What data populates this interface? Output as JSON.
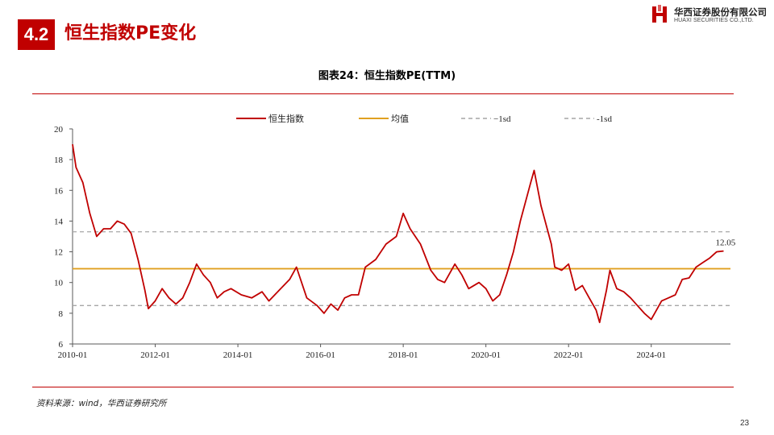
{
  "header": {
    "section_number": "4.2",
    "section_title": "恒生指数PE变化",
    "logo_cn": "华西证券股份有限公司",
    "logo_en": "HUAXI SECURITIES CO.,LTD.",
    "brand_color": "#c00000"
  },
  "chart_title": "图表24：恒生指数PE(TTM)",
  "source": "资料来源：wind，华西证券研究所",
  "page_number": "23",
  "chart_data": {
    "type": "line",
    "title": "图表24：恒生指数PE(TTM)",
    "xlabel": "",
    "ylabel": "",
    "ylim": [
      6,
      20
    ],
    "y_ticks": [
      "6",
      "8",
      "10",
      "12",
      "14",
      "16",
      "18",
      "20"
    ],
    "x_range": [
      "2010-01",
      "2025-12"
    ],
    "x_ticks": [
      "2010-01",
      "2012-01",
      "2014-01",
      "2016-01",
      "2018-01",
      "2020-01",
      "2022-01",
      "2024-01"
    ],
    "grid": false,
    "legend_position": "top",
    "legend": [
      "恒生指数",
      "均值",
      "−1sd",
      "-1sd"
    ],
    "series": [
      {
        "name": "恒生指数",
        "color": "#c00000",
        "style": "solid",
        "points": [
          [
            "2010-01",
            19.0
          ],
          [
            "2010-02",
            17.5
          ],
          [
            "2010-04",
            16.5
          ],
          [
            "2010-06",
            14.5
          ],
          [
            "2010-08",
            13.0
          ],
          [
            "2010-10",
            13.5
          ],
          [
            "2010-12",
            13.5
          ],
          [
            "2011-02",
            14.0
          ],
          [
            "2011-04",
            13.8
          ],
          [
            "2011-06",
            13.2
          ],
          [
            "2011-08",
            11.5
          ],
          [
            "2011-10",
            9.5
          ],
          [
            "2011-11",
            8.3
          ],
          [
            "2012-01",
            8.8
          ],
          [
            "2012-03",
            9.6
          ],
          [
            "2012-05",
            9.0
          ],
          [
            "2012-07",
            8.6
          ],
          [
            "2012-09",
            9.0
          ],
          [
            "2012-11",
            10.0
          ],
          [
            "2013-01",
            11.2
          ],
          [
            "2013-03",
            10.5
          ],
          [
            "2013-05",
            10.0
          ],
          [
            "2013-07",
            9.0
          ],
          [
            "2013-09",
            9.4
          ],
          [
            "2013-11",
            9.6
          ],
          [
            "2014-02",
            9.2
          ],
          [
            "2014-05",
            9.0
          ],
          [
            "2014-08",
            9.4
          ],
          [
            "2014-10",
            8.8
          ],
          [
            "2015-01",
            9.5
          ],
          [
            "2015-04",
            10.2
          ],
          [
            "2015-06",
            11.0
          ],
          [
            "2015-09",
            9.0
          ],
          [
            "2015-12",
            8.5
          ],
          [
            "2016-02",
            8.0
          ],
          [
            "2016-04",
            8.6
          ],
          [
            "2016-06",
            8.2
          ],
          [
            "2016-08",
            9.0
          ],
          [
            "2016-10",
            9.2
          ],
          [
            "2016-12",
            9.2
          ],
          [
            "2017-02",
            11.0
          ],
          [
            "2017-05",
            11.5
          ],
          [
            "2017-08",
            12.5
          ],
          [
            "2017-11",
            13.0
          ],
          [
            "2018-01",
            14.5
          ],
          [
            "2018-03",
            13.5
          ],
          [
            "2018-06",
            12.5
          ],
          [
            "2018-09",
            10.8
          ],
          [
            "2018-11",
            10.2
          ],
          [
            "2019-01",
            10.0
          ],
          [
            "2019-04",
            11.2
          ],
          [
            "2019-06",
            10.5
          ],
          [
            "2019-08",
            9.6
          ],
          [
            "2019-11",
            10.0
          ],
          [
            "2020-01",
            9.6
          ],
          [
            "2020-03",
            8.8
          ],
          [
            "2020-05",
            9.2
          ],
          [
            "2020-07",
            10.5
          ],
          [
            "2020-09",
            12.0
          ],
          [
            "2020-11",
            14.0
          ],
          [
            "2021-02",
            16.5
          ],
          [
            "2021-03",
            17.3
          ],
          [
            "2021-05",
            15.0
          ],
          [
            "2021-08",
            12.5
          ],
          [
            "2021-09",
            11.0
          ],
          [
            "2021-11",
            10.8
          ],
          [
            "2022-01",
            11.2
          ],
          [
            "2022-03",
            9.5
          ],
          [
            "2022-05",
            9.8
          ],
          [
            "2022-07",
            9.0
          ],
          [
            "2022-09",
            8.2
          ],
          [
            "2022-10",
            7.4
          ],
          [
            "2022-12",
            9.5
          ],
          [
            "2023-01",
            10.8
          ],
          [
            "2023-03",
            9.6
          ],
          [
            "2023-05",
            9.4
          ],
          [
            "2023-07",
            9.0
          ],
          [
            "2023-09",
            8.5
          ],
          [
            "2023-11",
            8.0
          ],
          [
            "2024-01",
            7.6
          ],
          [
            "2024-02",
            8.0
          ],
          [
            "2024-04",
            8.8
          ],
          [
            "2024-06",
            9.0
          ],
          [
            "2024-08",
            9.2
          ],
          [
            "2024-10",
            10.2
          ],
          [
            "2024-12",
            10.3
          ],
          [
            "2025-02",
            11.0
          ],
          [
            "2025-04",
            11.3
          ],
          [
            "2025-06",
            11.6
          ],
          [
            "2025-08",
            12.0
          ],
          [
            "2025-10",
            12.05
          ]
        ]
      },
      {
        "name": "均值",
        "color": "#e0a020",
        "style": "solid",
        "value": 10.9
      },
      {
        "name": "−1sd",
        "color": "#a6a6a6",
        "style": "dashed",
        "value": 13.3
      },
      {
        "name": "-1sd",
        "color": "#a6a6a6",
        "style": "dashed",
        "value": 8.5
      }
    ],
    "annotations": [
      {
        "text": "12.05",
        "x": "2025-10",
        "y": 12.05
      }
    ]
  }
}
